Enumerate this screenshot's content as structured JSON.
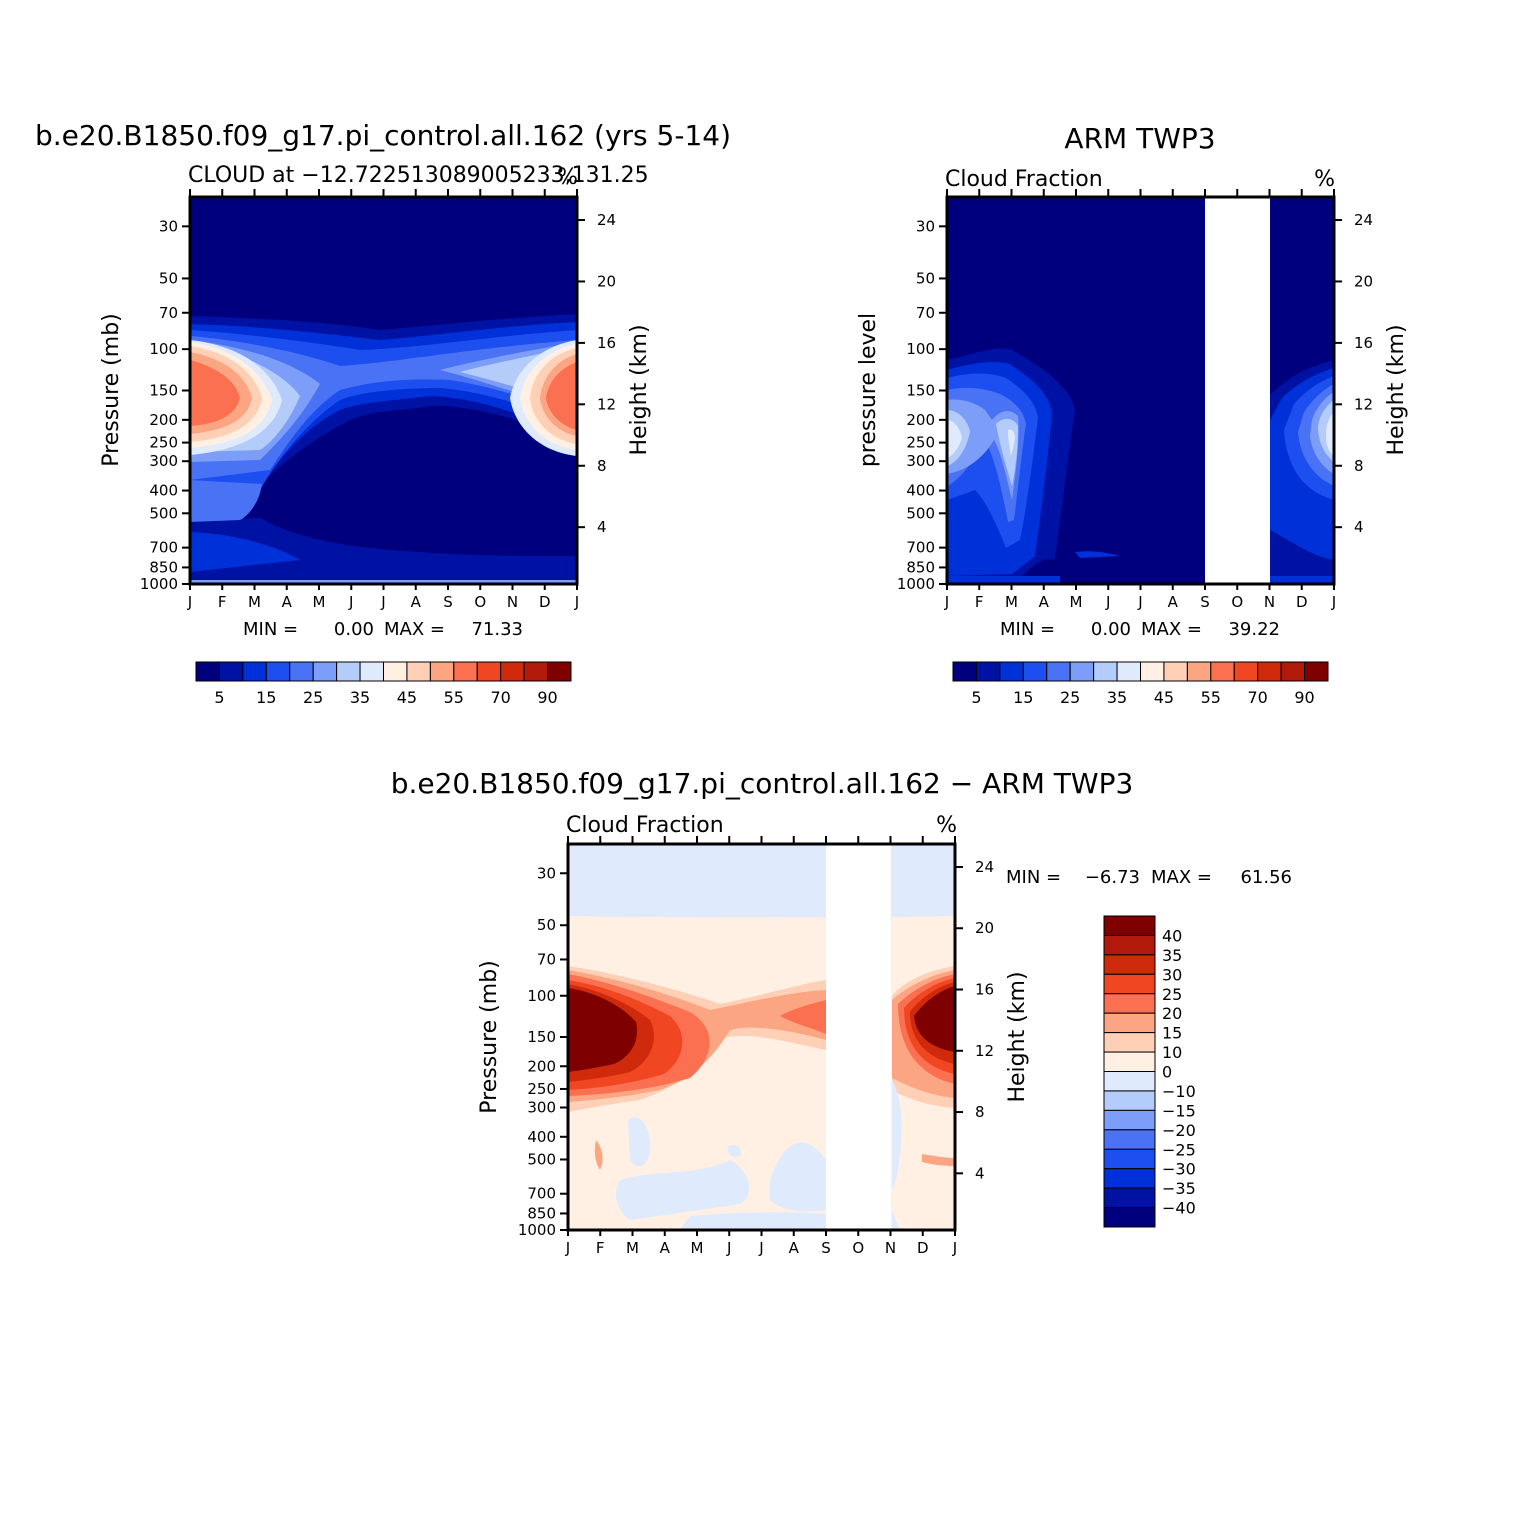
{
  "figure": {
    "months": [
      "J",
      "F",
      "M",
      "A",
      "M",
      "J",
      "J",
      "A",
      "S",
      "O",
      "N",
      "D",
      "J"
    ],
    "pressure_ticks": [
      30,
      50,
      70,
      100,
      150,
      200,
      250,
      300,
      400,
      500,
      700,
      850,
      1000
    ],
    "height_ticks": [
      24,
      20,
      16,
      12,
      8,
      4
    ]
  },
  "chart_data": [
    {
      "type": "heatmap",
      "title": "b.e20.B1850.f09_g17.pi_control.all.162 (yrs 5-14)",
      "subtitle_left": "CLOUD at -12.722513089005233,131.25",
      "subtitle_right": "%",
      "ylabel": "Pressure (mb)",
      "ylabel_right": "Height (km)",
      "min_label": "MIN =",
      "min_value": "0.00",
      "max_label": "MAX =",
      "max_value": "71.33",
      "missing_months": [],
      "colorbar": {
        "colors": [
          "#00007f",
          "#0012a4",
          "#0030d8",
          "#1c4ef0",
          "#4a72f5",
          "#7d9ef8",
          "#b4ccfa",
          "#dfeafd",
          "#fff0e3",
          "#ffd0b5",
          "#fca582",
          "#fa7050",
          "#f04621",
          "#d02a0c",
          "#b1190a",
          "#7f0000"
        ],
        "labels": [
          "5",
          "15",
          "25",
          "35",
          "45",
          "55",
          "70",
          "90"
        ]
      }
    },
    {
      "type": "heatmap",
      "title": "ARM TWP3",
      "subtitle_left": "Cloud Fraction",
      "subtitle_right": "%",
      "ylabel": "pressure level",
      "ylabel_right": "Height (km)",
      "min_label": "MIN =",
      "min_value": "0.00",
      "max_label": "MAX =",
      "max_value": "39.22",
      "missing_months": [
        "S",
        "O"
      ],
      "colorbar": {
        "colors": [
          "#00007f",
          "#0012a4",
          "#0030d8",
          "#1c4ef0",
          "#4a72f5",
          "#7d9ef8",
          "#b4ccfa",
          "#dfeafd",
          "#fff0e3",
          "#ffd0b5",
          "#fca582",
          "#fa7050",
          "#f04621",
          "#d02a0c",
          "#b1190a",
          "#7f0000"
        ],
        "labels": [
          "5",
          "15",
          "25",
          "35",
          "45",
          "55",
          "70",
          "90"
        ]
      }
    },
    {
      "type": "heatmap",
      "title": "b.e20.B1850.f09_g17.pi_control.all.162 - ARM TWP3",
      "subtitle_left": "Cloud Fraction",
      "subtitle_right": "%",
      "ylabel": "Pressure (mb)",
      "ylabel_right": "Height (km)",
      "min_label": "MIN =",
      "min_value": "-6.73",
      "max_label": "MAX =",
      "max_value": "61.56",
      "missing_months": [
        "S",
        "O"
      ],
      "colorbar": {
        "colors": [
          "#7f0000",
          "#b1190a",
          "#d02a0c",
          "#f04621",
          "#fa7050",
          "#fca582",
          "#ffd0b5",
          "#fff0e3",
          "#dfeafd",
          "#b4ccfa",
          "#7d9ef8",
          "#4a72f5",
          "#1c4ef0",
          "#0030d8",
          "#0012a4",
          "#00007f"
        ],
        "labels": [
          "40",
          "35",
          "30",
          "25",
          "20",
          "15",
          "10",
          "0",
          "-10",
          "-15",
          "-20",
          "-25",
          "-30",
          "-35",
          "-40"
        ]
      }
    }
  ]
}
